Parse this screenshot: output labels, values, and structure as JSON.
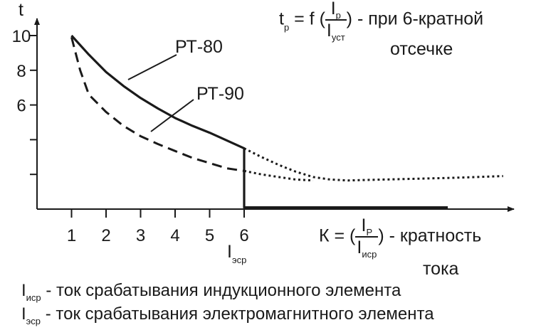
{
  "chart_data": {
    "type": "line",
    "y_axis_label": "t",
    "y_ticks": [
      "10",
      "8",
      "6",
      "",
      ""
    ],
    "y_tick_values": [
      10,
      8,
      6,
      4,
      2
    ],
    "x_ticks": [
      "1",
      "2",
      "3",
      "4",
      "5",
      "6"
    ],
    "x_tick_values": [
      1,
      2,
      3,
      4,
      5,
      6
    ],
    "xlim": [
      0,
      13
    ],
    "ylim": [
      0,
      11
    ],
    "grid": false,
    "series": [
      {
        "name": "РТ-80",
        "style": "solid",
        "x": [
          1,
          1.5,
          2,
          2.5,
          3,
          3.5,
          4,
          4.5,
          5,
          5.5,
          6,
          6,
          6,
          11.9
        ],
        "y": [
          10,
          8.9,
          7.9,
          7.1,
          6.4,
          5.8,
          5.25,
          4.8,
          4.4,
          3.95,
          3.5,
          2.2,
          0.1,
          0.1
        ]
      },
      {
        "name": "РТ-90",
        "style": "dashed",
        "x": [
          1,
          1.25,
          1.5,
          2,
          2.5,
          3,
          3.5,
          4,
          4.5,
          5,
          5.5,
          6
        ],
        "y": [
          9.9,
          8.0,
          6.6,
          5.6,
          4.8,
          4.2,
          3.75,
          3.35,
          2.95,
          2.65,
          2.35,
          2.2
        ]
      },
      {
        "name": "",
        "style": "dotted",
        "x": [
          6,
          6.5,
          7,
          7.5,
          8,
          8.5,
          9,
          10,
          11,
          12,
          13.5
        ],
        "y": [
          3.5,
          3.0,
          2.55,
          2.15,
          1.85,
          1.7,
          1.65,
          1.7,
          1.75,
          1.8,
          1.9
        ]
      },
      {
        "name": "",
        "style": "dotted",
        "x": [
          6,
          6.5,
          7,
          7.5,
          8
        ],
        "y": [
          2.2,
          2.0,
          1.85,
          1.7,
          1.65
        ]
      }
    ],
    "labels": {
      "rt80": "РТ-80",
      "rt90": "РТ-90"
    },
    "formula_t": {
      "t": "t",
      "t_sub": "р",
      "eq": " = f (",
      "num": "I",
      "num_sub": "р",
      "den": "I",
      "den_sub": "уст",
      "tail": ") - при 6-кратной",
      "line2": "отсечке"
    },
    "formula_k": {
      "k": "К = (",
      "num": "I",
      "num_sub": "Р",
      "den": "I",
      "den_sub": "иср",
      "tail": ") - кратность",
      "line2": "тока"
    },
    "i_esr": {
      "main": "I",
      "sub": "эср"
    },
    "colors": {
      "ink": "#1a1a1a"
    }
  },
  "legend": [
    {
      "main": "I",
      "sub": "иср",
      "text": " - ток срабатывания индукционного элемента"
    },
    {
      "main": "I",
      "sub": "эср",
      "text": " - ток срабатывания электромагнитного элемента"
    }
  ]
}
